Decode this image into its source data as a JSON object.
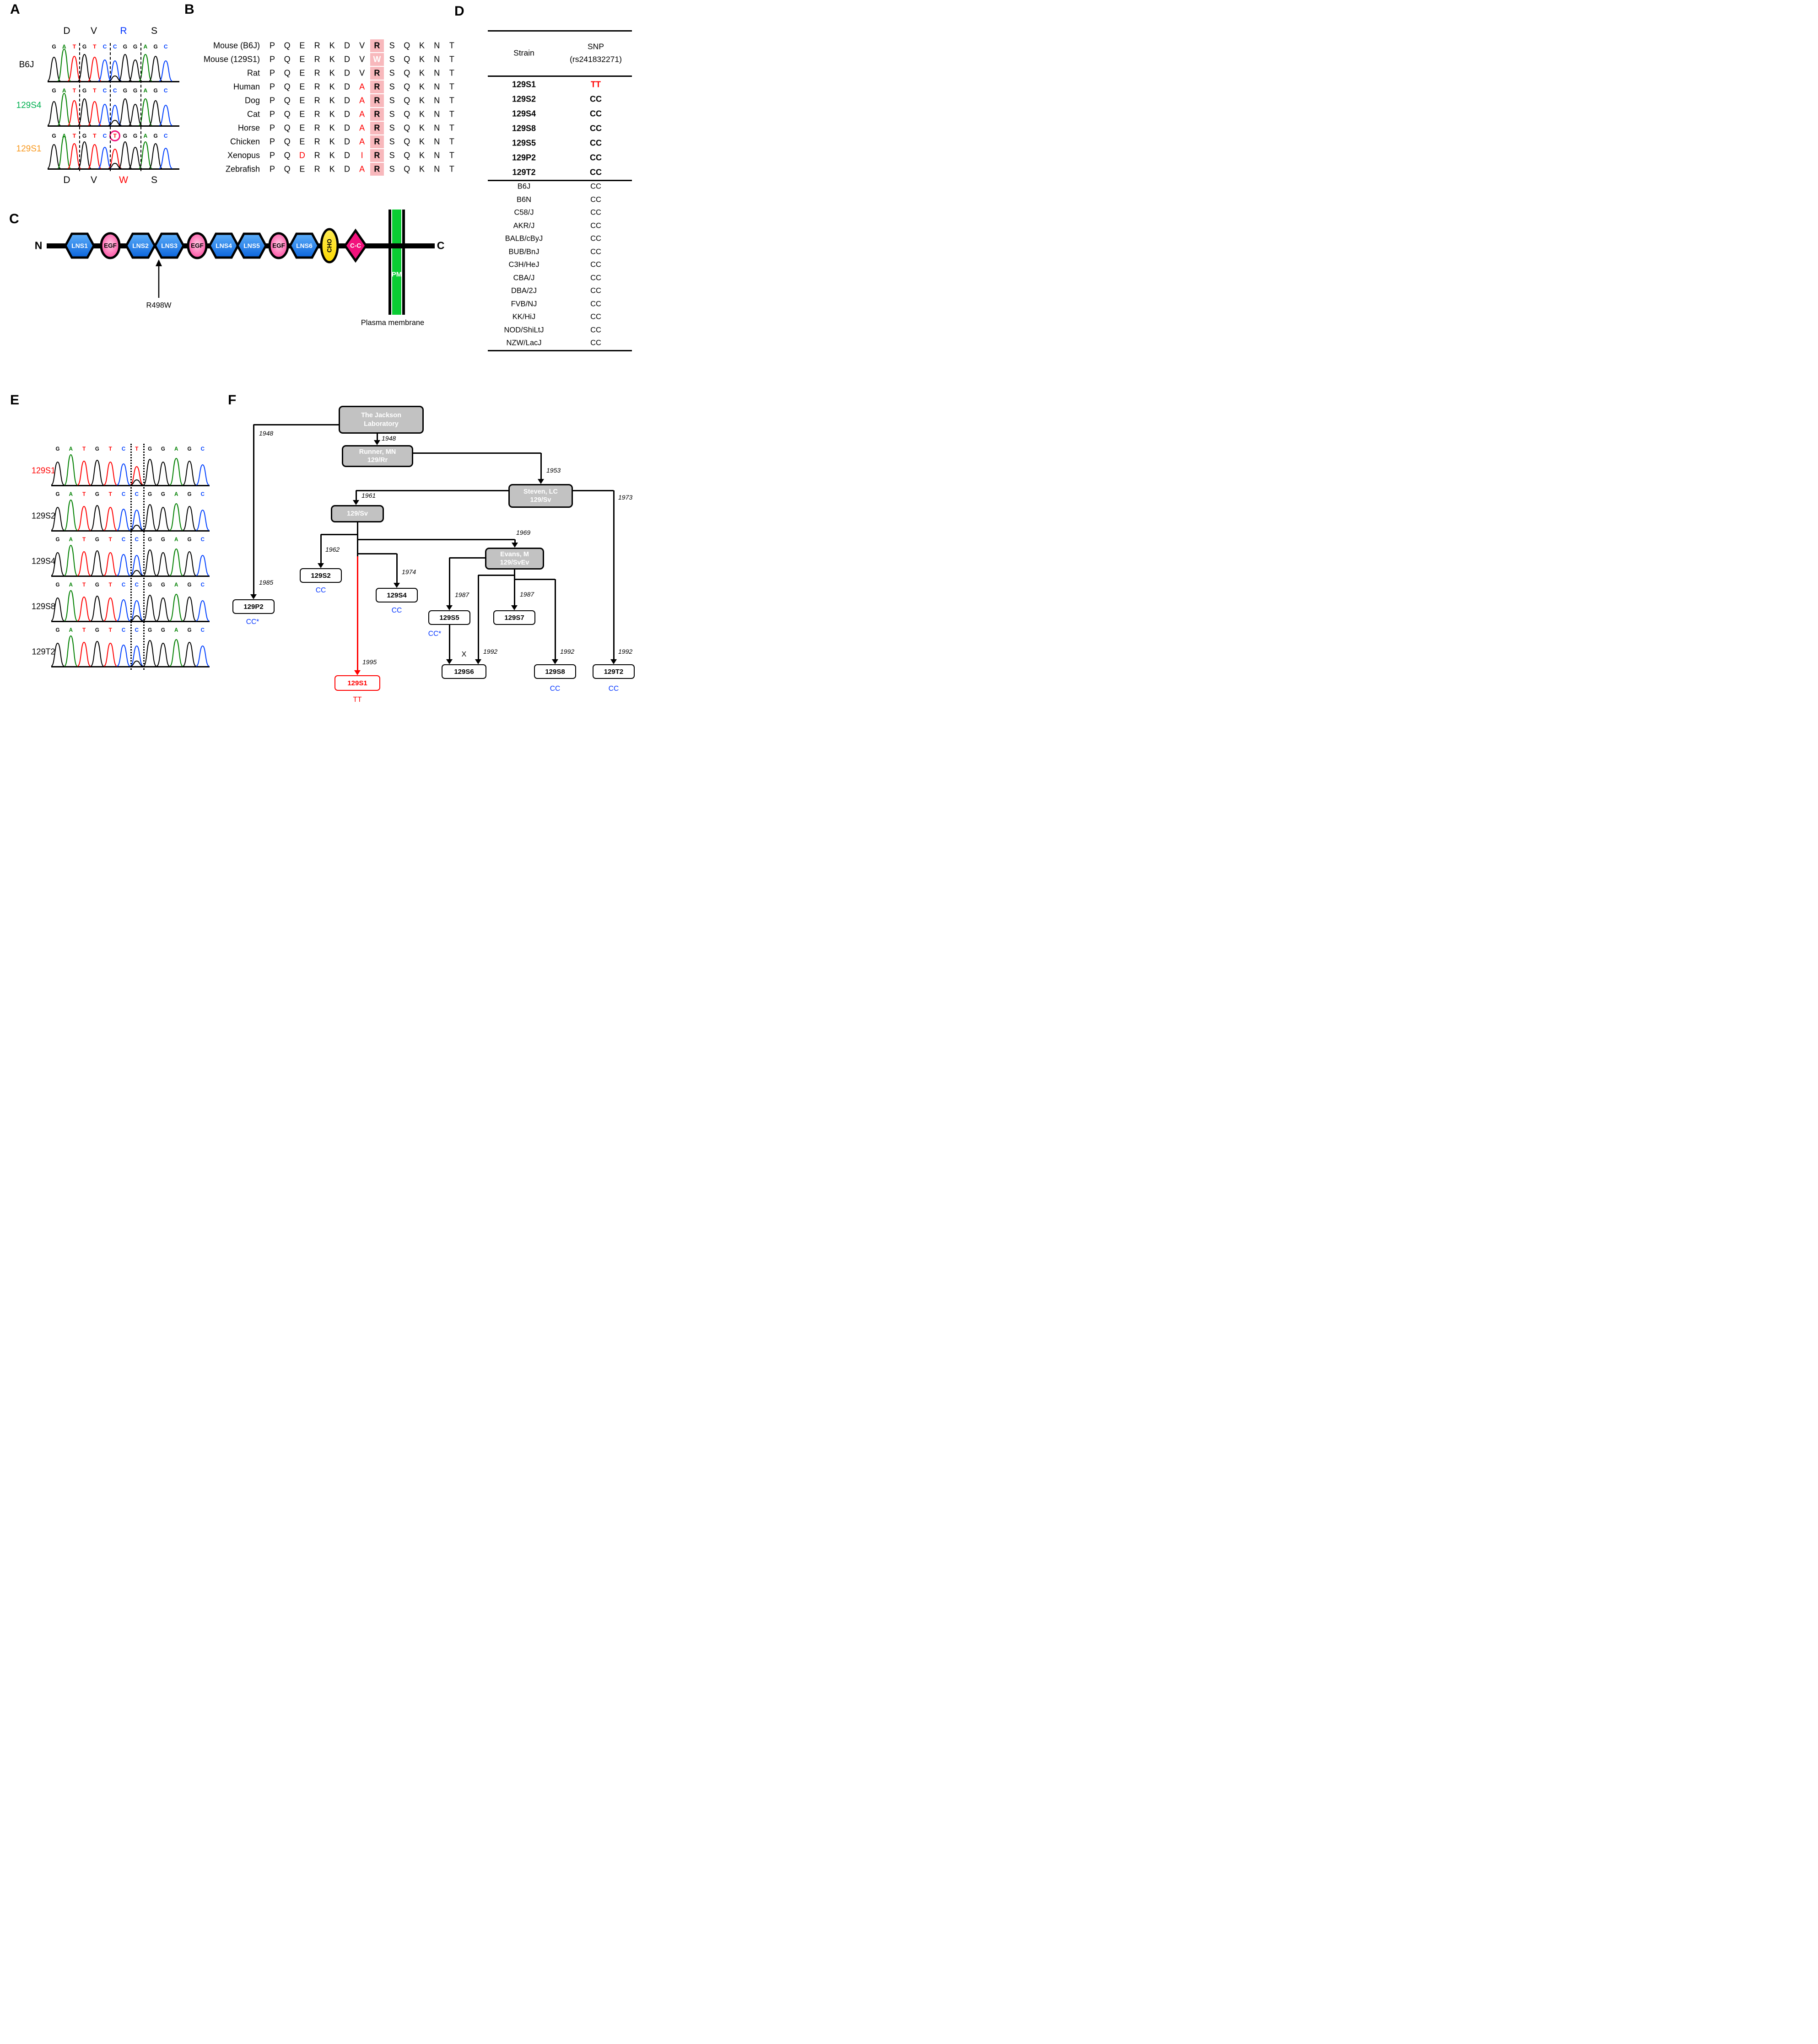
{
  "colors": {
    "base_G": "#000000",
    "base_A": "#008000",
    "base_T": "#FF0000",
    "base_C": "#0040FF",
    "blue_text": "#0033FF",
    "red_text": "#FF0000",
    "green_strain": "#00B050",
    "orange_strain": "#F8981D",
    "pink_highlight": "#F8B8BC",
    "circle_pink": "#F0137B",
    "gray_box": "#C2C2C2",
    "lns_blue": "#1E8CF0",
    "egf_pink": "#FF57A8",
    "cho_yellow": "#FFE12E",
    "cc_magenta": "#F2117C",
    "pm_green": "#0ACC33"
  },
  "panels": {
    "A": {
      "label": "A",
      "amino_top": [
        {
          "ch": "D",
          "color": "#000000"
        },
        {
          "ch": "V",
          "color": "#000000"
        },
        {
          "ch": "R",
          "color": "#0033FF"
        },
        {
          "ch": "S",
          "color": "#000000"
        }
      ],
      "amino_bottom": [
        {
          "ch": "D",
          "color": "#000000"
        },
        {
          "ch": "V",
          "color": "#000000"
        },
        {
          "ch": "W",
          "color": "#FF0000"
        },
        {
          "ch": "S",
          "color": "#000000"
        }
      ],
      "rows": [
        {
          "name": "B6J",
          "name_color": "#000000",
          "letters": "GATGTCCGGAGC",
          "circled_index": null
        },
        {
          "name": "129S4",
          "name_color": "#00B050",
          "letters": "GATGTCCGGAGC",
          "circled_index": null
        },
        {
          "name": "129S1",
          "name_color": "#F8981D",
          "letters": "GATGTCTGGAGC",
          "circled_index": 6
        }
      ]
    },
    "B": {
      "label": "B",
      "highlight_index": 7,
      "rows": [
        {
          "name": "Mouse (B6J)",
          "seq": "PQERKDVRSQKNT",
          "red_indices": [],
          "highlight_style": "bold-black"
        },
        {
          "name": "Mouse (129S1)",
          "seq": "PQERKDVWSQKNT",
          "red_indices": [],
          "highlight_style": "bold-white"
        },
        {
          "name": "Rat",
          "seq": "PQERKDVRSQKNT",
          "red_indices": [],
          "highlight_style": "bold-black"
        },
        {
          "name": "Human",
          "seq": "PQERKDARSQKNT",
          "red_indices": [
            6
          ],
          "highlight_style": "bold-black"
        },
        {
          "name": "Dog",
          "seq": "PQERKDARSQKNT",
          "red_indices": [
            6
          ],
          "highlight_style": "bold-black"
        },
        {
          "name": "Cat",
          "seq": "PQERKDARSQKNT",
          "red_indices": [
            6
          ],
          "highlight_style": "bold-black"
        },
        {
          "name": "Horse",
          "seq": "PQERKDARSQKNT",
          "red_indices": [
            6
          ],
          "highlight_style": "bold-black"
        },
        {
          "name": "Chicken",
          "seq": "PQERKDARSQKNT",
          "red_indices": [
            6
          ],
          "highlight_style": "bold-black"
        },
        {
          "name": "Xenopus",
          "seq": "PQDRKDIRSQKNT",
          "red_indices": [
            2,
            6
          ],
          "highlight_style": "bold-black"
        },
        {
          "name": "Zebrafish",
          "seq": "PQERKDARSQKNT",
          "red_indices": [
            6
          ],
          "highlight_style": "bold-black"
        }
      ]
    },
    "C": {
      "label": "C",
      "n_terminus": "N",
      "c_terminus": "C",
      "domains": [
        "LNS1",
        "EGF",
        "LNS2",
        "LNS3",
        "EGF",
        "LNS4",
        "LNS5",
        "EGF",
        "LNS6",
        "CHO",
        "C-C"
      ],
      "pm_label": "PM",
      "mutation_label": "R498W",
      "membrane_label": "Plasma membrane"
    },
    "D": {
      "label": "D",
      "header_col1": "Strain",
      "header_col2_line1": "SNP",
      "header_col2_line2": "(rs241832271)",
      "group1": [
        {
          "strain": "129S1",
          "snp": "TT",
          "snp_color": "#FF0000"
        },
        {
          "strain": "129S2",
          "snp": "CC",
          "snp_color": "#000000"
        },
        {
          "strain": "129S4",
          "snp": "CC",
          "snp_color": "#000000"
        },
        {
          "strain": "129S8",
          "snp": "CC",
          "snp_color": "#000000"
        },
        {
          "strain": "129S5",
          "snp": "CC",
          "snp_color": "#000000"
        },
        {
          "strain": "129P2",
          "snp": "CC",
          "snp_color": "#000000"
        },
        {
          "strain": "129T2",
          "snp": "CC",
          "snp_color": "#000000"
        }
      ],
      "group2": [
        {
          "strain": "B6J",
          "snp": "CC"
        },
        {
          "strain": "B6N",
          "snp": "CC"
        },
        {
          "strain": "C58/J",
          "snp": "CC"
        },
        {
          "strain": "AKR/J",
          "snp": "CC"
        },
        {
          "strain": "BALB/cByJ",
          "snp": "CC"
        },
        {
          "strain": "BUB/BnJ",
          "snp": "CC"
        },
        {
          "strain": "C3H/HeJ",
          "snp": "CC"
        },
        {
          "strain": "CBA/J",
          "snp": "CC"
        },
        {
          "strain": "DBA/2J",
          "snp": "CC"
        },
        {
          "strain": "FVB/NJ",
          "snp": "CC"
        },
        {
          "strain": "KK/HiJ",
          "snp": "CC"
        },
        {
          "strain": "NOD/ShiLtJ",
          "snp": "CC"
        },
        {
          "strain": "NZW/LacJ",
          "snp": "CC"
        }
      ]
    },
    "E": {
      "label": "E",
      "rows": [
        {
          "name": "129S1",
          "name_color": "#FF0000",
          "letters": "GATGTCTGGAGC"
        },
        {
          "name": "129S2",
          "name_color": "#000000",
          "letters": "GATGTCCGGAGC"
        },
        {
          "name": "129S4",
          "name_color": "#000000",
          "letters": "GATGTCCGGAGC"
        },
        {
          "name": "129S8",
          "name_color": "#000000",
          "letters": "GATGTCCGGAGC"
        },
        {
          "name": "129T2",
          "name_color": "#000000",
          "letters": "GATGTCCGGAGC"
        }
      ]
    },
    "F": {
      "label": "F",
      "gray_nodes": {
        "jackson": {
          "line1": "The Jackson",
          "line2": "Laboratory"
        },
        "runner": {
          "line1": "Runner, MN",
          "line2": "129/Rr"
        },
        "steven": {
          "line1": "Steven, LC",
          "line2": "129/Sv"
        },
        "sv": {
          "line1": "129/Sv",
          "line2": ""
        },
        "evans": {
          "line1": "Evans, M",
          "line2": "129/SvEv"
        }
      },
      "strain_nodes": {
        "s2": {
          "name": "129S2",
          "genotype": "CC"
        },
        "s4": {
          "name": "129S4",
          "genotype": "CC"
        },
        "p2": {
          "name": "129P2",
          "genotype": "CC*"
        },
        "s5": {
          "name": "129S5",
          "genotype": "CC*"
        },
        "s7": {
          "name": "129S7",
          "genotype": ""
        },
        "s6": {
          "name": "129S6",
          "genotype": ""
        },
        "s8": {
          "name": "129S8",
          "genotype": "CC"
        },
        "t2": {
          "name": "129T2",
          "genotype": "CC"
        },
        "s1": {
          "name": "129S1",
          "genotype": "TT"
        }
      },
      "year_labels": {
        "jax_left": "1948",
        "jax_down": "1948",
        "to_steven": "1953",
        "to_sv": "1961",
        "to_t2_top": "1973",
        "to_s2": "1962",
        "to_evans": "1969",
        "to_s4": "1974",
        "to_p2": "1985",
        "to_s5": "1987",
        "to_s7": "1987",
        "to_s6": "1992",
        "to_s8": "1992",
        "to_t2": "1992",
        "to_s1": "1995"
      },
      "cross_label": "X"
    }
  }
}
